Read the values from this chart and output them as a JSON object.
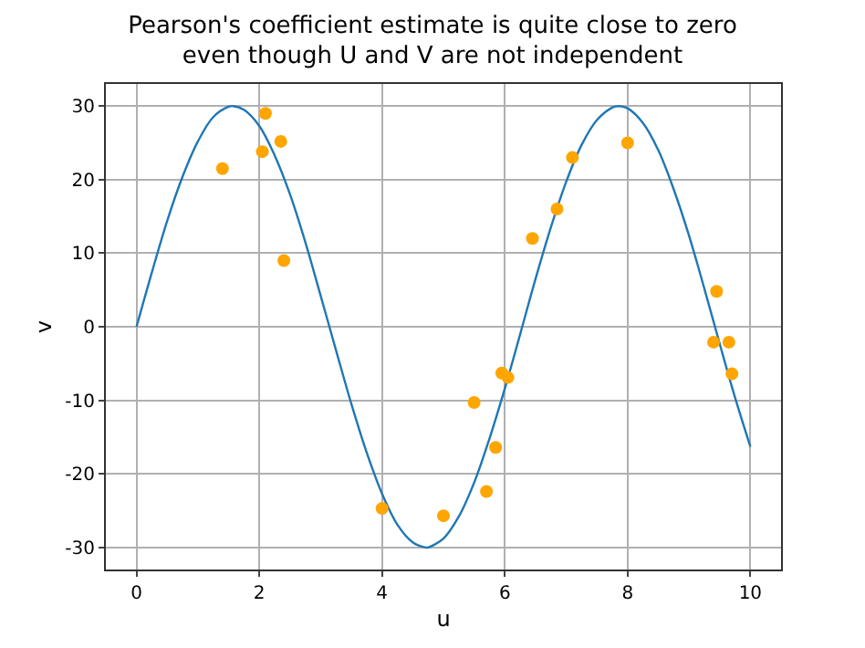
{
  "chart_data": {
    "type": "scatter",
    "title": "Pearson's coefficient estimate is quite close to zero\neven though U and V are not independent",
    "xlabel": "u",
    "ylabel": "v",
    "series": [
      {
        "type": "line",
        "color": "#1f77b4",
        "x": [
          0,
          0.25,
          0.5,
          0.75,
          1,
          1.25,
          1.5,
          1.57,
          1.75,
          2,
          2.25,
          2.5,
          2.75,
          3,
          3.25,
          3.5,
          3.75,
          4,
          4.25,
          4.5,
          4.71,
          4.75,
          5,
          5.25,
          5.5,
          5.75,
          6,
          6.25,
          6.5,
          6.75,
          7,
          7.25,
          7.5,
          7.75,
          7.85,
          8,
          8.25,
          8.5,
          8.75,
          9,
          9.25,
          9.5,
          9.75,
          10
        ],
        "values": [
          0,
          7.4,
          14.4,
          20.4,
          25.2,
          28.5,
          29.9,
          30,
          29.5,
          27.3,
          23.3,
          18.0,
          11.5,
          4.2,
          -3.2,
          -10.5,
          -17.1,
          -22.7,
          -26.9,
          -29.3,
          -30,
          -30.0,
          -28.8,
          -25.8,
          -21.2,
          -15.2,
          -8.4,
          -1.0,
          6.5,
          13.5,
          19.7,
          24.7,
          28.1,
          29.8,
          30,
          29.7,
          27.7,
          24.0,
          18.7,
          12.4,
          5.2,
          -2.3,
          -9.6,
          -16.3
        ]
      },
      {
        "color": "#ffa500",
        "marker": "circle",
        "x": [
          1.4,
          2.1,
          2.05,
          2.35,
          2.4,
          4.0,
          5.0,
          5.5,
          5.7,
          5.85,
          5.95,
          6.05,
          6.45,
          6.85,
          7.1,
          8.0,
          9.4,
          9.45,
          9.65,
          9.7
        ],
        "values": [
          21.5,
          29,
          23.8,
          25.2,
          9,
          -24.7,
          -25.7,
          -10.3,
          -22.4,
          -16.4,
          -6.3,
          -6.9,
          12,
          16,
          23,
          25,
          -2.1,
          4.8,
          -2.1,
          -6.4
        ]
      }
    ],
    "xlim": [
      -0.5,
      10.5
    ],
    "xticks": [
      0,
      2,
      4,
      6,
      8,
      10
    ],
    "ylim": [
      -33,
      33
    ],
    "yticks": [
      -30,
      -20,
      -10,
      0,
      10,
      20,
      30
    ],
    "grid": true
  }
}
